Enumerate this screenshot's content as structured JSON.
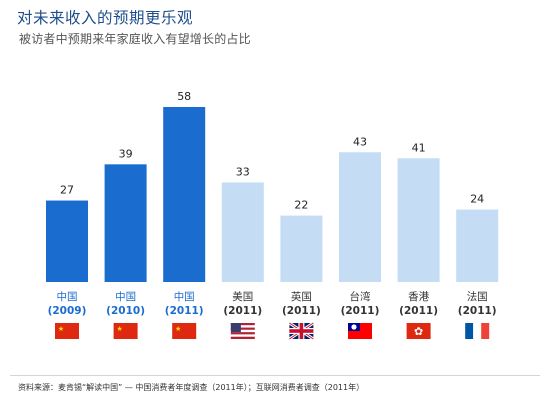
{
  "header": {
    "title": "对未来收入的预期更乐观",
    "subtitle": "被访者中预期来年家庭收入有望增长的占比"
  },
  "footer": {
    "source": "资料来源：麦肯锡“解读中国” — 中国消费者年度调查（2011年）；互联网消费者调查（2011年）"
  },
  "colors": {
    "dark_bar": "#1a6ccf",
    "light_bar": "#c5dcf5",
    "title": "#1f4e8c"
  },
  "chart_data": {
    "type": "bar",
    "title": "对未来收入的预期更乐观",
    "subtitle": "被访者中预期来年家庭收入有望增长的占比",
    "xlabel": "",
    "ylabel": "",
    "ylim": [
      0,
      60
    ],
    "grid": false,
    "categories": [
      {
        "name": "中国",
        "year": "(2009)",
        "style": "dark",
        "flag": "china-flag-icon"
      },
      {
        "name": "中国",
        "year": "(2010)",
        "style": "dark",
        "flag": "china-flag-icon"
      },
      {
        "name": "中国",
        "year": "(2011)",
        "style": "dark",
        "flag": "china-flag-icon"
      },
      {
        "name": "美国",
        "year": "(2011)",
        "style": "light",
        "flag": "usa-flag-icon"
      },
      {
        "name": "英国",
        "year": "(2011)",
        "style": "light",
        "flag": "uk-flag-icon"
      },
      {
        "name": "台湾",
        "year": "(2011)",
        "style": "light",
        "flag": "taiwan-flag-icon"
      },
      {
        "name": "香港",
        "year": "(2011)",
        "style": "light",
        "flag": "hongkong-flag-icon"
      },
      {
        "name": "法国",
        "year": "(2011)",
        "style": "light",
        "flag": "france-flag-icon"
      }
    ],
    "values": [
      27,
      39,
      58,
      33,
      22,
      43,
      41,
      24
    ]
  }
}
